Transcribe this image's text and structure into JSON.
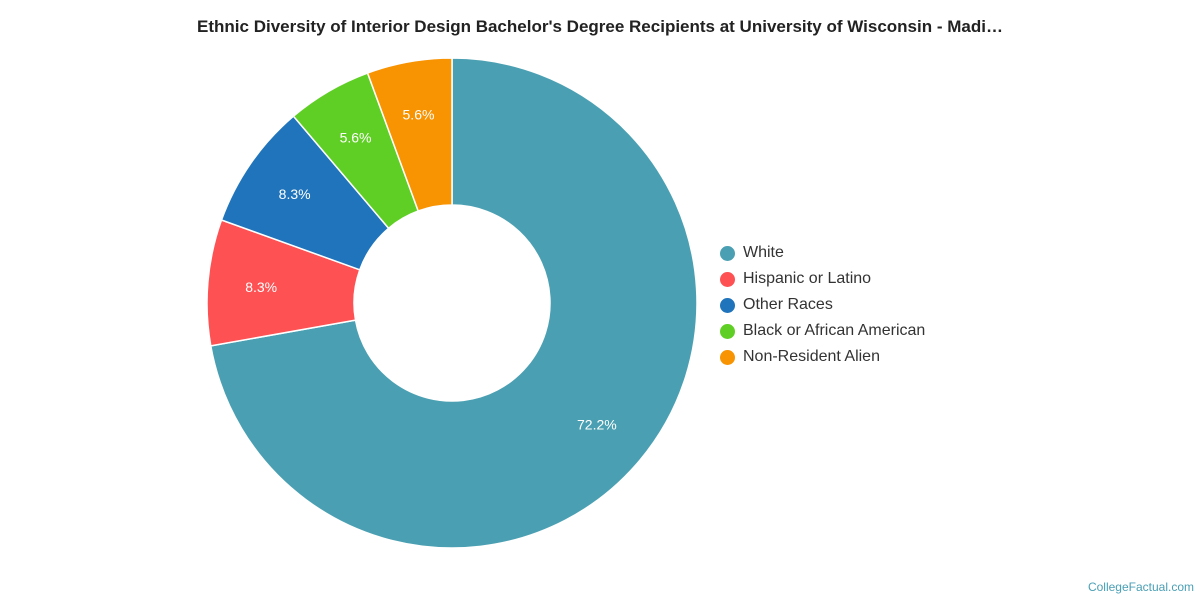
{
  "chart_data": {
    "type": "pie",
    "subtype": "donut",
    "title": "Ethnic Diversity of Interior Design Bachelor's Degree Recipients at University of Wisconsin - Madi…",
    "slices": [
      {
        "label": "White",
        "value": 72.2,
        "display": "72.2%",
        "color": "#4aa0b2"
      },
      {
        "label": "Hispanic or Latino",
        "value": 8.3,
        "display": "8.3%",
        "color": "#fd5154"
      },
      {
        "label": "Other Races",
        "value": 8.3,
        "display": "8.3%",
        "color": "#1f74bb"
      },
      {
        "label": "Black or African American",
        "value": 5.6,
        "display": "5.6%",
        "color": "#60cf25"
      },
      {
        "label": "Non-Resident Alien",
        "value": 5.6,
        "display": "5.6%",
        "color": "#f89302"
      }
    ],
    "legend_position": "right"
  },
  "footer": {
    "credit": "CollegeFactual.com"
  }
}
